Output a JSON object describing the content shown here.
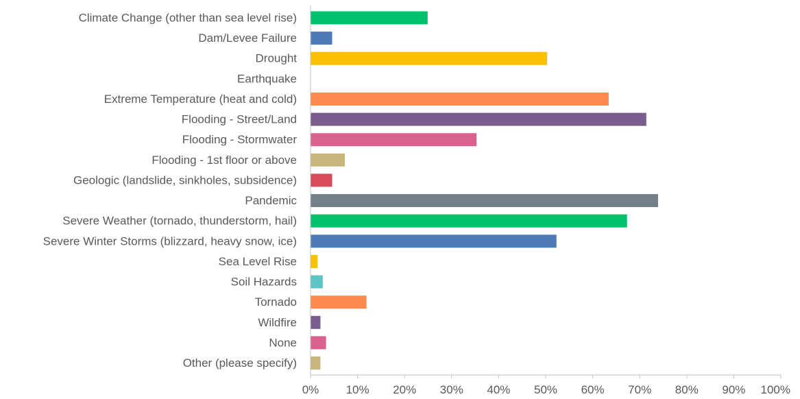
{
  "chart_data": {
    "type": "bar",
    "orientation": "horizontal",
    "title": "",
    "xlabel": "",
    "ylabel": "",
    "xlim": [
      0,
      100
    ],
    "x_ticks": [
      "0%",
      "10%",
      "20%",
      "30%",
      "40%",
      "50%",
      "60%",
      "70%",
      "80%",
      "90%",
      "100%"
    ],
    "grid": false,
    "categories": [
      "Climate Change (other than sea level rise)",
      "Dam/Levee Failure",
      "Drought",
      "Earthquake",
      "Extreme Temperature (heat and cold)",
      "Flooding - Street/Land",
      "Flooding - Stormwater",
      "Flooding - 1st floor or above",
      "Geologic (landslide, sinkholes, subsidence)",
      "Pandemic",
      "Severe Weather (tornado, thunderstorm, hail)",
      "Severe Winter Storms (blizzard, heavy snow, ice)",
      "Sea Level Rise",
      "Soil Hazards",
      "Tornado",
      "Wildfire",
      "None",
      "Other (please specify)"
    ],
    "values": [
      24.9,
      4.6,
      50.3,
      0,
      63.4,
      71.4,
      35.3,
      7.3,
      4.6,
      73.9,
      67.3,
      52.3,
      1.5,
      2.6,
      11.9,
      2.1,
      3.3,
      2.1
    ],
    "colors": [
      "#00c16e",
      "#4f7ab8",
      "#fbc000",
      "#a5a5a5",
      "#ff8a50",
      "#7a5c8f",
      "#d9608f",
      "#c8b67c",
      "#d84b5b",
      "#737f89",
      "#00c16e",
      "#4f7ab8",
      "#fbc000",
      "#5ec5c5",
      "#ff8a50",
      "#7a5c8f",
      "#d9608f",
      "#c8b67c"
    ]
  }
}
